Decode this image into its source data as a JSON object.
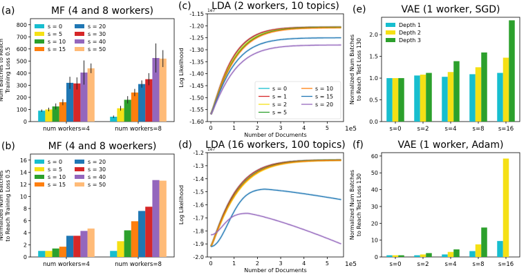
{
  "chart_data": [
    {
      "id": "a",
      "panel_label": "(a)",
      "type": "bar",
      "title": "MF (4 and 8 workers)",
      "ylabel_lines": [
        "Num Batches to Reach",
        "Training Loss 0.5"
      ],
      "xlabel": "",
      "categories": [
        "num workers=4",
        "num workers=8"
      ],
      "ylim": [
        0,
        850
      ],
      "yticks": [
        0,
        100,
        200,
        300,
        400,
        500,
        600,
        700,
        800
      ],
      "legend": {
        "placement": "top-left",
        "columns": 2
      },
      "series": [
        {
          "name": "s = 0",
          "color": "#17becf",
          "values": [
            90,
            40
          ],
          "errors": [
            10,
            10
          ]
        },
        {
          "name": "s = 5",
          "color": "#f5e015",
          "values": [
            100,
            110
          ],
          "errors": [
            15,
            20
          ]
        },
        {
          "name": "s = 10",
          "color": "#2ca02c",
          "values": [
            125,
            180
          ],
          "errors": [
            25,
            30
          ]
        },
        {
          "name": "s = 15",
          "color": "#ff7f0e",
          "values": [
            160,
            240
          ],
          "errors": [
            25,
            30
          ]
        },
        {
          "name": "s = 20",
          "color": "#1f77b4",
          "values": [
            320,
            310
          ],
          "errors": [
            50,
            30
          ]
        },
        {
          "name": "s = 30",
          "color": "#d62728",
          "values": [
            315,
            350
          ],
          "errors": [
            50,
            50
          ]
        },
        {
          "name": "s = 40",
          "color": "#9467bd",
          "values": [
            405,
            525
          ],
          "errors": [
            100,
            120
          ]
        },
        {
          "name": "s = 50",
          "color": "#ffbb78",
          "values": [
            440,
            520
          ],
          "errors": [
            40,
            70
          ]
        }
      ]
    },
    {
      "id": "b",
      "panel_label": "(b)",
      "type": "bar",
      "title": "MF (4 and 8 woerkers)",
      "ylabel_lines": [
        "Normalized Num Batches",
        "to Reach Training Loss 0.5"
      ],
      "xlabel": "",
      "categories": [
        "num workers=4",
        "num workers=8"
      ],
      "ylim": [
        0,
        17
      ],
      "yticks": [
        0,
        2,
        4,
        6,
        8,
        10,
        12,
        14,
        16
      ],
      "legend": {
        "placement": "top-left",
        "columns": 2
      },
      "series": [
        {
          "name": "s = 0",
          "color": "#17becf",
          "values": [
            1.0,
            1.0
          ]
        },
        {
          "name": "s = 5",
          "color": "#f5e015",
          "values": [
            1.0,
            2.6
          ]
        },
        {
          "name": "s = 10",
          "color": "#2ca02c",
          "values": [
            1.4,
            4.4
          ]
        },
        {
          "name": "s = 15",
          "color": "#ff7f0e",
          "values": [
            1.7,
            5.9
          ]
        },
        {
          "name": "s = 20",
          "color": "#1f77b4",
          "values": [
            3.5,
            7.6
          ]
        },
        {
          "name": "s = 30",
          "color": "#d62728",
          "values": [
            3.5,
            8.3
          ]
        },
        {
          "name": "s = 40",
          "color": "#9467bd",
          "values": [
            4.3,
            12.7
          ]
        },
        {
          "name": "s = 50",
          "color": "#ffbb78",
          "values": [
            4.7,
            12.6
          ]
        }
      ]
    },
    {
      "id": "c",
      "panel_label": "(c)",
      "type": "line",
      "title": "LDA (2 workers, 10 topics)",
      "xlabel": "Number of Documents",
      "ylabel": "Log Likelihood",
      "y_multiplier": "1e7",
      "x_multiplier": "1e5",
      "xlim": [
        -0.15,
        5.7
      ],
      "ylim": [
        -1.6,
        -1.15
      ],
      "xticks": [
        0,
        1,
        2,
        3,
        4,
        5
      ],
      "yticks": [
        -1.6,
        -1.55,
        -1.5,
        -1.45,
        -1.4,
        -1.35,
        -1.3,
        -1.25,
        -1.2,
        -1.15
      ],
      "ytick_labels": [
        "-1.60",
        "-1.55",
        "-1.50",
        "-1.45",
        "-1.40",
        "-1.35",
        "-1.30",
        "-1.25",
        "-1.20",
        "-1.15"
      ],
      "legend": {
        "placement": "bottom-right",
        "columns": 2
      },
      "series": [
        {
          "name": "s = 0",
          "color": "#17becf",
          "start": -1.57,
          "plateau": -1.205,
          "rate": 1.1
        },
        {
          "name": "s = 1",
          "color": "#d62728",
          "start": -1.57,
          "plateau": -1.205,
          "rate": 1.12
        },
        {
          "name": "s = 2",
          "color": "#f5e015",
          "start": -1.57,
          "plateau": -1.207,
          "rate": 1.05
        },
        {
          "name": "s = 5",
          "color": "#2ca02c",
          "start": -1.57,
          "plateau": -1.206,
          "rate": 1.0
        },
        {
          "name": "s = 10",
          "color": "#ff7f0e",
          "start": -1.57,
          "plateau": -1.208,
          "rate": 0.98
        },
        {
          "name": "s = 15",
          "color": "#1f77b4",
          "start": -1.57,
          "plateau": -1.25,
          "rate": 1.05
        },
        {
          "name": "s = 20",
          "color": "#9467bd",
          "start": -1.57,
          "plateau": -1.28,
          "rate": 1.0
        }
      ]
    },
    {
      "id": "d",
      "panel_label": "(d)",
      "type": "line",
      "title": "LDA (16 workers, 100 topics)",
      "xlabel": "Number of Documents",
      "ylabel": "Log Likelihood",
      "y_multiplier": "1e7",
      "x_multiplier": "1e5",
      "xlim": [
        -0.15,
        5.7
      ],
      "ylim": [
        -2.0,
        -1.2
      ],
      "xticks": [
        0,
        1,
        2,
        3,
        4,
        5
      ],
      "yticks": [
        -2.0,
        -1.9,
        -1.8,
        -1.7,
        -1.6,
        -1.5,
        -1.4,
        -1.3,
        -1.2
      ],
      "ytick_labels": [
        "-2.0",
        "-1.9",
        "-1.8",
        "-1.7",
        "-1.6",
        "-1.5",
        "-1.4",
        "-1.3",
        "-1.2"
      ],
      "legend": {
        "placement": "none",
        "columns": 0
      },
      "series": [
        {
          "name": "s = 0",
          "color": "#17becf",
          "kind": "saturate",
          "start": -1.92,
          "plateau": -1.255,
          "rate": 0.95
        },
        {
          "name": "s = 1",
          "color": "#d62728",
          "kind": "saturate",
          "start": -1.92,
          "plateau": -1.255,
          "rate": 0.95
        },
        {
          "name": "s = 2",
          "color": "#f5e015",
          "kind": "saturate",
          "start": -1.92,
          "plateau": -1.258,
          "rate": 0.85
        },
        {
          "name": "s = 5",
          "color": "#2ca02c",
          "kind": "saturate",
          "start": -1.92,
          "plateau": -1.256,
          "rate": 0.9
        },
        {
          "name": "s = 10",
          "color": "#ff7f0e",
          "kind": "saturate",
          "start": -1.92,
          "plateau": -1.258,
          "rate": 0.88
        },
        {
          "name": "s = 15",
          "color": "#1f77b4",
          "kind": "peak",
          "start": -1.92,
          "peak_x": 2.3,
          "peak_y": -1.48,
          "end_y": -1.56
        },
        {
          "name": "s = 20",
          "color": "#9467bd",
          "kind": "peak",
          "start": -1.83,
          "peak_x": 1.55,
          "peak_y": -1.665,
          "end_y": -1.9
        }
      ]
    },
    {
      "id": "e",
      "panel_label": "(e)",
      "type": "bar",
      "title": "VAE (1 worker, SGD)",
      "ylabel_lines": [
        "Normalized Num Batches",
        "to Reach Test Loss 130"
      ],
      "xlabel": "",
      "categories": [
        "s=0",
        "s=2",
        "s=4",
        "s=8",
        "s=16"
      ],
      "ylim": [
        0,
        2.4
      ],
      "yticks": [
        0.0,
        0.5,
        1.0,
        1.5,
        2.0
      ],
      "ytick_labels": [
        "0.0",
        "0.5",
        "1.0",
        "1.5",
        "2.0"
      ],
      "legend": {
        "placement": "top-left",
        "columns": 1
      },
      "series": [
        {
          "name": "Depth 1",
          "color": "#17becf",
          "values": [
            1.0,
            1.06,
            1.03,
            1.09,
            1.12
          ]
        },
        {
          "name": "Depth 2",
          "color": "#f5e015",
          "values": [
            1.0,
            1.08,
            1.14,
            1.25,
            1.47
          ]
        },
        {
          "name": "Depth 3",
          "color": "#2ca02c",
          "values": [
            1.0,
            1.12,
            1.39,
            1.59,
            2.33
          ]
        }
      ]
    },
    {
      "id": "f",
      "panel_label": "(f)",
      "type": "bar",
      "title": "VAE (1 worker, Adam)",
      "ylabel_lines": [
        "Normalized Num Batches",
        "to Reach Test Loss 130"
      ],
      "xlabel": "",
      "categories": [
        "s=0",
        "s=2",
        "s=4",
        "s=8",
        "s=16"
      ],
      "ylim": [
        0,
        62
      ],
      "yticks": [
        0,
        10,
        20,
        30,
        40,
        50,
        60
      ],
      "legend": {
        "placement": "none",
        "columns": 0
      },
      "series": [
        {
          "name": "Depth 1",
          "color": "#17becf",
          "values": [
            1.0,
            1.0,
            1.5,
            3.5,
            9.5
          ]
        },
        {
          "name": "Depth 2",
          "color": "#f5e015",
          "values": [
            1.0,
            1.5,
            3.0,
            7.5,
            58.5
          ]
        },
        {
          "name": "Depth 3",
          "color": "#2ca02c",
          "values": [
            1.0,
            2.3,
            4.5,
            17.5,
            0
          ]
        }
      ]
    }
  ]
}
